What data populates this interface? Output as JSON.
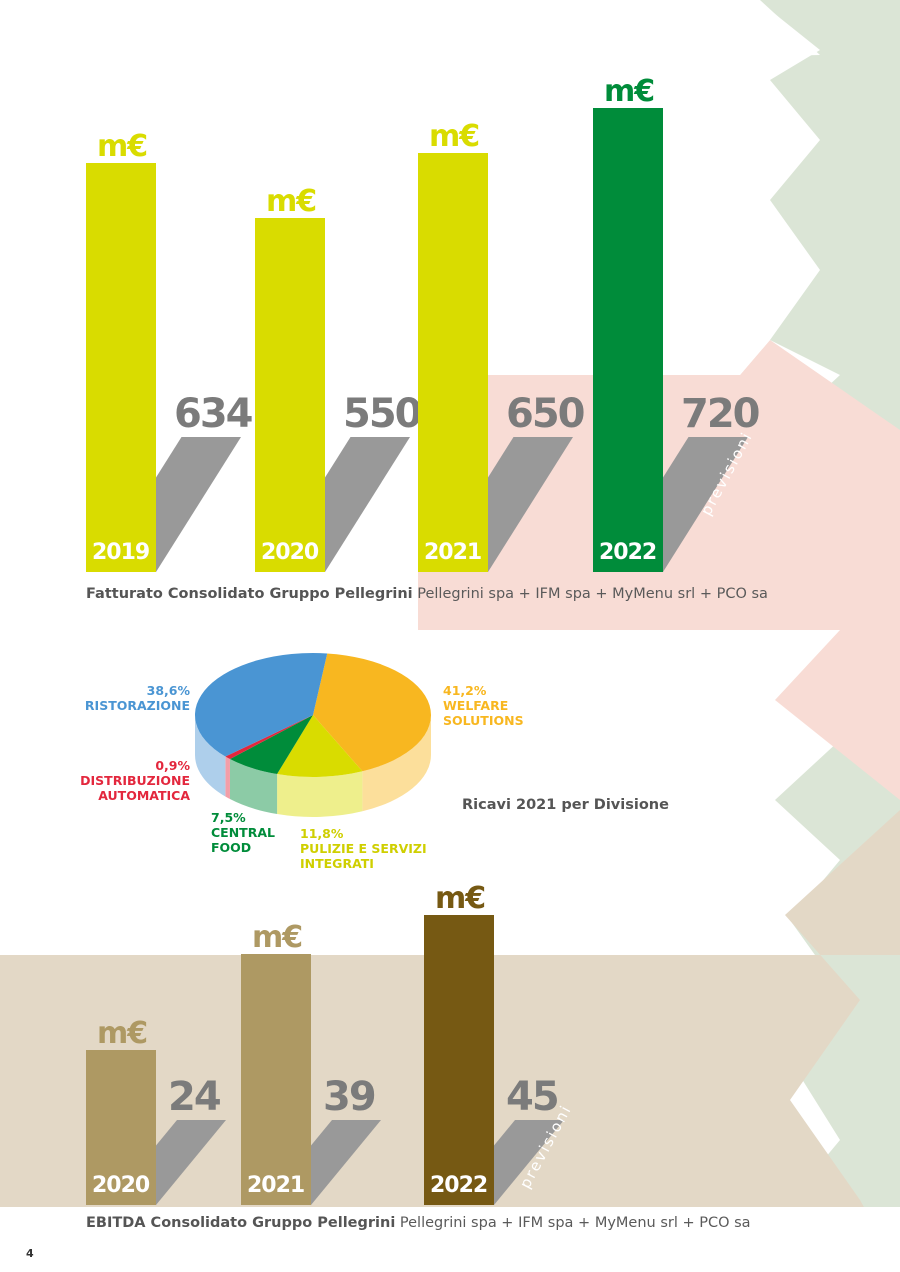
{
  "colors": {
    "yellow": "#d9dc00",
    "dark_green": "#008c3a",
    "gray": "#999999",
    "light_green_bg": "#dbe5d6",
    "pink_bg": "#f8dcd5",
    "tan_bg": "#e3d8c6",
    "ebitda_light": "#ae9963",
    "ebitda_dark": "#765913"
  },
  "chart_data": [
    {
      "type": "bar",
      "title": "Fatturato Consolidato Gruppo Pellegrini",
      "subtitle": "Pellegrini spa + IFM spa + MyMenu srl + PCO sa",
      "categories": [
        "2019",
        "2020",
        "2021",
        "2022"
      ],
      "unit": "m€",
      "values": [
        634,
        550,
        650,
        720
      ],
      "value_labels": [
        "634",
        "550",
        "650",
        "720"
      ],
      "forecast_label": "previsioni",
      "forecast_index": 3
    },
    {
      "type": "pie",
      "title": "Ricavi 2021 per Divisione",
      "slices": [
        {
          "percent_label": "38,6%",
          "value": 38.6,
          "name": "RISTORAZIONE",
          "color": "#4a95d3"
        },
        {
          "percent_label": "41,2%",
          "value": 41.2,
          "name": "WELFARE SOLUTIONS",
          "color": "#f8b720"
        },
        {
          "percent_label": "11,8%",
          "value": 11.8,
          "name": "PULIZIE E SERVIZI INTEGRATI",
          "color": "#d9dc00"
        },
        {
          "percent_label": "7,5%",
          "value": 7.5,
          "name": "CENTRAL FOOD",
          "color": "#008c3a"
        },
        {
          "percent_label": "0,9%",
          "value": 0.9,
          "name": "DISTRIBUZIONE AUTOMATICA",
          "color": "#e3273d"
        }
      ]
    },
    {
      "type": "bar",
      "title": "EBITDA Consolidato Gruppo Pellegrini",
      "subtitle": "Pellegrini spa + IFM spa + MyMenu srl + PCO sa",
      "categories": [
        "2020",
        "2021",
        "2022"
      ],
      "unit": "m€",
      "values": [
        24,
        39,
        45
      ],
      "value_labels": [
        "24",
        "39",
        "45"
      ],
      "forecast_label": "previsioni",
      "forecast_index": 2
    }
  ],
  "pie_labels": {
    "ristorazione": {
      "pct": "38,6%",
      "lines": [
        "RISTORAZIONE"
      ]
    },
    "welfare": {
      "pct": "41,2%",
      "lines": [
        "WELFARE",
        "SOLUTIONS"
      ]
    },
    "distribuzione": {
      "pct": "0,9%",
      "lines": [
        "DISTRIBUZIONE",
        "AUTOMATICA"
      ]
    },
    "central": {
      "pct": "7,5%",
      "lines": [
        "CENTRAL",
        "FOOD"
      ]
    },
    "pulizie": {
      "pct": "11,8%",
      "lines": [
        "PULIZIE E SERVIZI",
        "INTEGRATI"
      ]
    }
  },
  "page_number": "4"
}
